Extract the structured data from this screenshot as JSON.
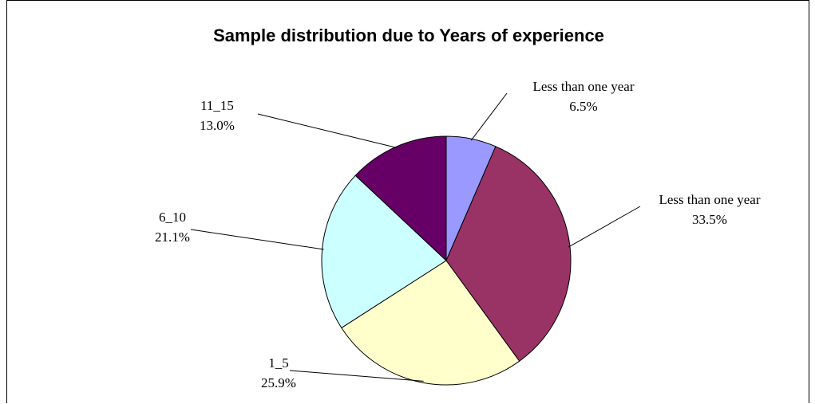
{
  "chart_data": {
    "type": "pie",
    "title": "Sample distribution due to Years of experience",
    "slices": [
      {
        "label": "Less than one year",
        "value": 6.5,
        "value_label": "6.5%",
        "color": "#9999ff"
      },
      {
        "label": "Less than one year",
        "value": 33.5,
        "value_label": "33.5%",
        "color": "#993366"
      },
      {
        "label": "1_5",
        "value": 25.9,
        "value_label": "25.9%",
        "color": "#ffffcc"
      },
      {
        "label": "6_10",
        "value": 21.1,
        "value_label": "21.1%",
        "color": "#ccffff"
      },
      {
        "label": "11_15",
        "value": 13.0,
        "value_label": "13.0%",
        "color": "#660066"
      }
    ],
    "start_angle": "12 o'clock",
    "direction": "clockwise",
    "legend": "none"
  }
}
